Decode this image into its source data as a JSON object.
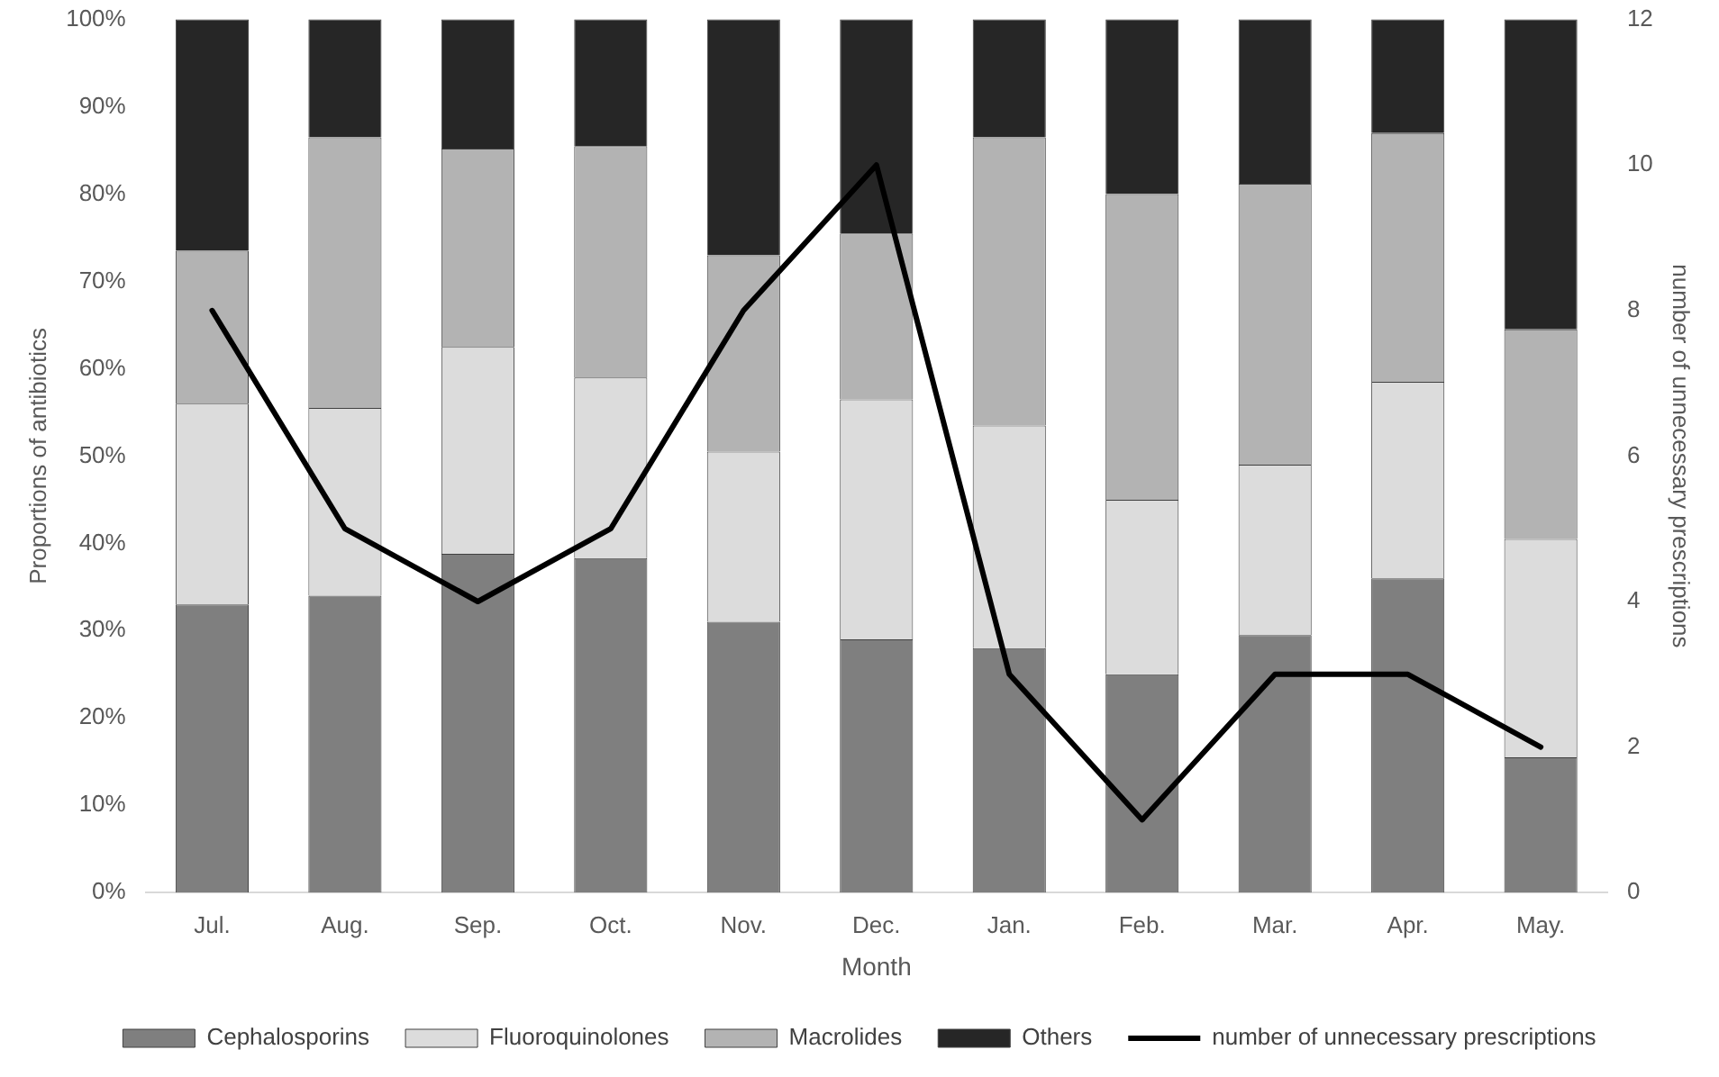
{
  "chart_data": {
    "type": "bar",
    "stacked": true,
    "xlabel": "Month",
    "ylabel": "Proportions of antibiotics",
    "y2label": "number of unnecessary prescriptions",
    "categories": [
      "Jul.",
      "Aug.",
      "Sep.",
      "Oct.",
      "Nov.",
      "Dec.",
      "Jan.",
      "Feb.",
      "Mar.",
      "Apr.",
      "May."
    ],
    "series": [
      {
        "name": "Cephalosporins",
        "color": "#7f7f7f",
        "values": [
          33,
          34,
          38.8,
          38.3,
          31,
          29,
          28,
          25,
          29.5,
          36,
          15.5
        ]
      },
      {
        "name": "Fluoroquinolones",
        "color": "#dcdcdc",
        "values": [
          23,
          21.5,
          23.7,
          20.7,
          19.5,
          27.5,
          25.5,
          20,
          19.5,
          22.5,
          25
        ]
      },
      {
        "name": "Macrolides",
        "color": "#b3b3b3",
        "values": [
          17.5,
          31,
          22.7,
          26.5,
          22.5,
          19,
          33,
          35,
          32.2,
          28.5,
          24
        ]
      },
      {
        "name": "Others",
        "color": "#262626",
        "values": [
          26.5,
          13.5,
          14.8,
          14.5,
          27,
          24.5,
          13.5,
          20,
          18.8,
          13,
          35.5
        ]
      },
      {
        "name": "number of unnecessary prescriptions",
        "type": "line",
        "axis": "y2",
        "color": "#000000",
        "marker": "none",
        "line_style": "solid",
        "values": [
          8,
          5,
          4,
          5,
          8,
          10,
          3,
          1,
          3,
          3,
          2
        ]
      }
    ],
    "ylim": [
      0,
      100
    ],
    "yticks": [
      {
        "value": 0,
        "label": "0%"
      },
      {
        "value": 10,
        "label": "10%"
      },
      {
        "value": 20,
        "label": "20%"
      },
      {
        "value": 30,
        "label": "30%"
      },
      {
        "value": 40,
        "label": "40%"
      },
      {
        "value": 50,
        "label": "50%"
      },
      {
        "value": 60,
        "label": "60%"
      },
      {
        "value": 70,
        "label": "70%"
      },
      {
        "value": 80,
        "label": "80%"
      },
      {
        "value": 90,
        "label": "90%"
      },
      {
        "value": 100,
        "label": "100%"
      }
    ],
    "y2lim": [
      0,
      12
    ],
    "y2ticks": [
      0,
      2,
      4,
      6,
      8,
      10,
      12
    ],
    "grid": false,
    "legend": "bottom"
  }
}
